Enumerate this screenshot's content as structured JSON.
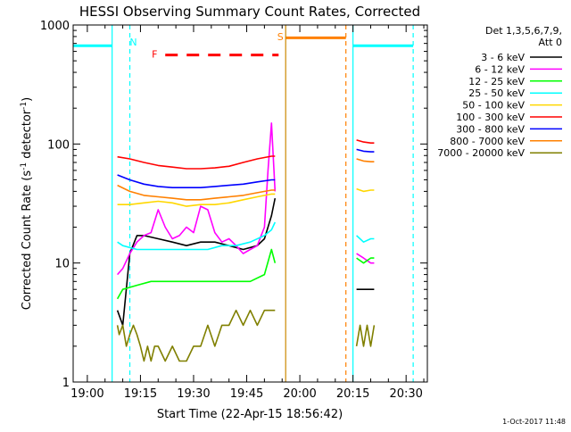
{
  "chart_data": {
    "type": "line",
    "title": "HESSI Observing Summary Count Rates, Corrected",
    "xlabel": "Start Time (22-Apr-15 18:56:42)",
    "ylabel": "Corrected Count Rate (s",
    "ylabel_sup1": "-1",
    "ylabel_mid": " detector",
    "ylabel_sup2": "-1",
    "ylabel_end": ")",
    "yscale": "log",
    "ylim": [
      1,
      1000
    ],
    "xlim_minutes": [
      -4,
      36
    ],
    "x_ticks": [
      {
        "m": 0,
        "label": "19:00"
      },
      {
        "m": 15,
        "label": "19:15"
      },
      {
        "m": 30,
        "label": "19:30"
      },
      {
        "m": 45,
        "label": "19:45"
      },
      {
        "m": 60,
        "label": "20:00"
      },
      {
        "m": 75,
        "label": "20:15"
      },
      {
        "m": 90,
        "label": "20:30"
      }
    ],
    "y_ticks": [
      {
        "v": 1,
        "label": "1"
      },
      {
        "v": 10,
        "label": "10"
      },
      {
        "v": 100,
        "label": "100"
      },
      {
        "v": 1000,
        "label": "1000"
      }
    ],
    "legend": {
      "header1": "Det 1,3,5,6,7,9,",
      "header2": "Att 0",
      "placement": "right"
    },
    "series": [
      {
        "name": "3 - 6 keV",
        "color": "#000000",
        "segments": [
          {
            "x": [
              8.5,
              10,
              12,
              14,
              16,
              20,
              24,
              28,
              32,
              36,
              40,
              44,
              48,
              50,
              52,
              53
            ],
            "y": [
              4,
              3,
              12,
              17,
              17,
              16,
              15,
              14,
              15,
              15,
              14,
              13,
              14,
              16,
              25,
              35
            ]
          },
          {
            "x": [
              76,
              78,
              80,
              81
            ],
            "y": [
              6,
              6,
              6,
              6
            ]
          }
        ]
      },
      {
        "name": "6 - 12 keV",
        "color": "#ff00ff",
        "segments": [
          {
            "x": [
              8.5,
              10,
              12,
              14,
              16,
              18,
              20,
              22,
              24,
              26,
              28,
              30,
              32,
              34,
              36,
              38,
              40,
              42,
              44,
              46,
              48,
              50,
              51,
              52,
              53
            ],
            "y": [
              8,
              9,
              12,
              15,
              17,
              18,
              28,
              20,
              16,
              17,
              20,
              18,
              30,
              28,
              18,
              15,
              16,
              14,
              12,
              13,
              14,
              20,
              60,
              150,
              40
            ]
          },
          {
            "x": [
              76,
              78,
              80,
              81
            ],
            "y": [
              12,
              11,
              10,
              10
            ]
          }
        ]
      },
      {
        "name": "12 - 25 keV",
        "color": "#00ff00",
        "segments": [
          {
            "x": [
              8.5,
              10,
              14,
              18,
              22,
              26,
              30,
              34,
              38,
              42,
              46,
              50,
              52,
              53
            ],
            "y": [
              5,
              6,
              6.5,
              7,
              7,
              7,
              7,
              7,
              7,
              7,
              7,
              8,
              13,
              10
            ]
          },
          {
            "x": [
              76,
              78,
              80,
              81
            ],
            "y": [
              11,
              10,
              11,
              11
            ]
          }
        ]
      },
      {
        "name": "25 - 50 keV",
        "color": "#00ffff",
        "segments": [
          {
            "x": [
              8.5,
              10,
              14,
              18,
              22,
              26,
              30,
              34,
              38,
              42,
              46,
              50,
              52,
              53
            ],
            "y": [
              15,
              14,
              13,
              13,
              13,
              13,
              13,
              13,
              14,
              14,
              15,
              17,
              19,
              22
            ]
          },
          {
            "x": [
              76,
              78,
              80,
              81
            ],
            "y": [
              17,
              15,
              16,
              16
            ]
          }
        ]
      },
      {
        "name": "50 - 100 keV",
        "color": "#ffd700",
        "segments": [
          {
            "x": [
              8.5,
              12,
              16,
              20,
              24,
              28,
              32,
              36,
              40,
              44,
              48,
              52,
              53
            ],
            "y": [
              31,
              31,
              32,
              33,
              32,
              30,
              31,
              31,
              32,
              34,
              36,
              38,
              38
            ]
          },
          {
            "x": [
              76,
              78,
              80,
              81
            ],
            "y": [
              42,
              40,
              41,
              41
            ]
          }
        ]
      },
      {
        "name": "100 - 300 keV",
        "color": "#ff0000",
        "segments": [
          {
            "x": [
              8.5,
              12,
              16,
              20,
              24,
              28,
              32,
              36,
              40,
              44,
              48,
              52,
              53
            ],
            "y": [
              78,
              75,
              70,
              66,
              64,
              62,
              62,
              63,
              65,
              70,
              75,
              79,
              79
            ]
          },
          {
            "x": [
              76,
              78,
              80,
              81
            ],
            "y": [
              108,
              104,
              102,
              102
            ]
          }
        ]
      },
      {
        "name": "300 - 800 keV",
        "color": "#0000ff",
        "segments": [
          {
            "x": [
              8.5,
              12,
              16,
              20,
              24,
              28,
              32,
              36,
              40,
              44,
              48,
              52,
              53
            ],
            "y": [
              55,
              50,
              46,
              44,
              43,
              43,
              43,
              44,
              45,
              46,
              48,
              50,
              50
            ]
          },
          {
            "x": [
              76,
              78,
              80,
              81
            ],
            "y": [
              90,
              87,
              86,
              86
            ]
          }
        ]
      },
      {
        "name": "800 - 7000 keV",
        "color": "#ff8000",
        "segments": [
          {
            "x": [
              8.5,
              12,
              16,
              20,
              24,
              28,
              32,
              36,
              40,
              44,
              48,
              52,
              53
            ],
            "y": [
              45,
              40,
              37,
              36,
              35,
              34,
              34,
              35,
              36,
              37,
              39,
              41,
              41
            ]
          },
          {
            "x": [
              76,
              78,
              80,
              81
            ],
            "y": [
              75,
              72,
              71,
              71
            ]
          }
        ]
      },
      {
        "name": "7000 - 20000 keV",
        "color": "#808000",
        "segments": [
          {
            "x": [
              8.5,
              9,
              10,
              11,
              12,
              13,
              14,
              15,
              16,
              17,
              18,
              19,
              20,
              22,
              24,
              26,
              28,
              30,
              32,
              34,
              36,
              38,
              40,
              42,
              44,
              46,
              48,
              50,
              52,
              53
            ],
            "y": [
              3,
              2.5,
              3,
              2,
              2.5,
              3,
              2.5,
              2,
              1.5,
              2,
              1.5,
              2,
              2,
              1.5,
              2,
              1.5,
              1.5,
              2,
              2,
              3,
              2,
              3,
              3,
              4,
              3,
              4,
              3,
              4,
              4,
              4
            ]
          },
          {
            "x": [
              76,
              77,
              78,
              79,
              80,
              81
            ],
            "y": [
              2,
              3,
              2,
              3,
              2,
              3
            ]
          }
        ]
      }
    ],
    "markers": [
      {
        "type": "hline",
        "color": "#00ffff",
        "x": [
          -4,
          7
        ],
        "y": 670
      },
      {
        "type": "vline",
        "color": "#00ffff",
        "x": 7,
        "style": "solid"
      },
      {
        "type": "vline",
        "color": "#00ffff",
        "x": 12,
        "style": "dashed"
      },
      {
        "type": "text",
        "color": "#00ffff",
        "x": 13,
        "y": 720,
        "label": "N"
      },
      {
        "type": "text",
        "color": "#ff0000",
        "x": 19,
        "y": 570,
        "label": "F"
      },
      {
        "type": "dashed-h",
        "color": "#ff0000",
        "x": [
          22,
          54
        ],
        "y": 560
      },
      {
        "type": "hline",
        "color": "#ff8000",
        "x": [
          56,
          73
        ],
        "y": 780
      },
      {
        "type": "vline",
        "color": "#cc8800",
        "x": 56,
        "style": "solid"
      },
      {
        "type": "vline",
        "color": "#ff8000",
        "x": 73,
        "style": "dashed"
      },
      {
        "type": "text",
        "color": "#ff8000",
        "x": 54.5,
        "y": 800,
        "label": "S"
      },
      {
        "type": "vline",
        "color": "#00ffff",
        "x": 75,
        "style": "solid"
      },
      {
        "type": "hline",
        "color": "#00ffff",
        "x": [
          75,
          92
        ],
        "y": 670
      },
      {
        "type": "vline",
        "color": "#00ffff",
        "x": 92,
        "style": "dashed"
      }
    ]
  },
  "footer": {
    "timestamp": "1-Oct-2017 11:48"
  }
}
